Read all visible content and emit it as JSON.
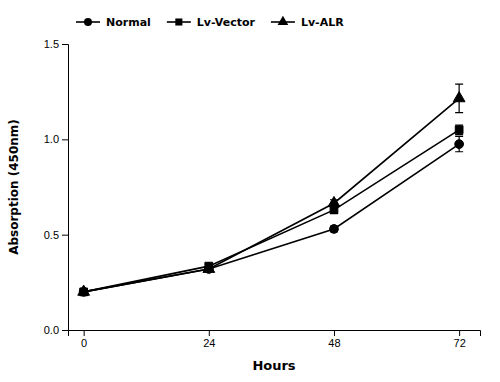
{
  "chart_data": {
    "type": "line",
    "x": [
      0,
      24,
      48,
      72
    ],
    "xlabel": "Hours",
    "ylabel": "Absorption (450nm)",
    "xlim": [
      -3,
      76
    ],
    "ylim": [
      0.0,
      1.5
    ],
    "xticks": [
      0,
      24,
      48,
      72
    ],
    "yticks": [
      {
        "value": 0.0,
        "label": "0.0"
      },
      0.5,
      {
        "value": 1.0,
        "label": "1.0"
      },
      1.5
    ],
    "grid": false,
    "legend": "upper left",
    "series": [
      {
        "name": "Normal",
        "color": "#000000",
        "marker": "circle",
        "values": [
          0.2,
          0.32,
          0.53,
          0.975
        ],
        "errors": [
          0.005,
          0.01,
          0.015,
          0.04
        ]
      },
      {
        "name": "Lv-Vector",
        "color": "#000000",
        "marker": "square",
        "values": [
          0.2,
          0.335,
          0.63,
          1.05
        ],
        "errors": [
          0.005,
          0.01,
          0.018,
          0.025
        ]
      },
      {
        "name": "Lv-ALR",
        "color": "#000000",
        "marker": "triangle",
        "values": [
          0.2,
          0.32,
          0.665,
          1.215
        ],
        "errors": [
          0.005,
          0.008,
          0.018,
          0.075
        ]
      }
    ]
  }
}
